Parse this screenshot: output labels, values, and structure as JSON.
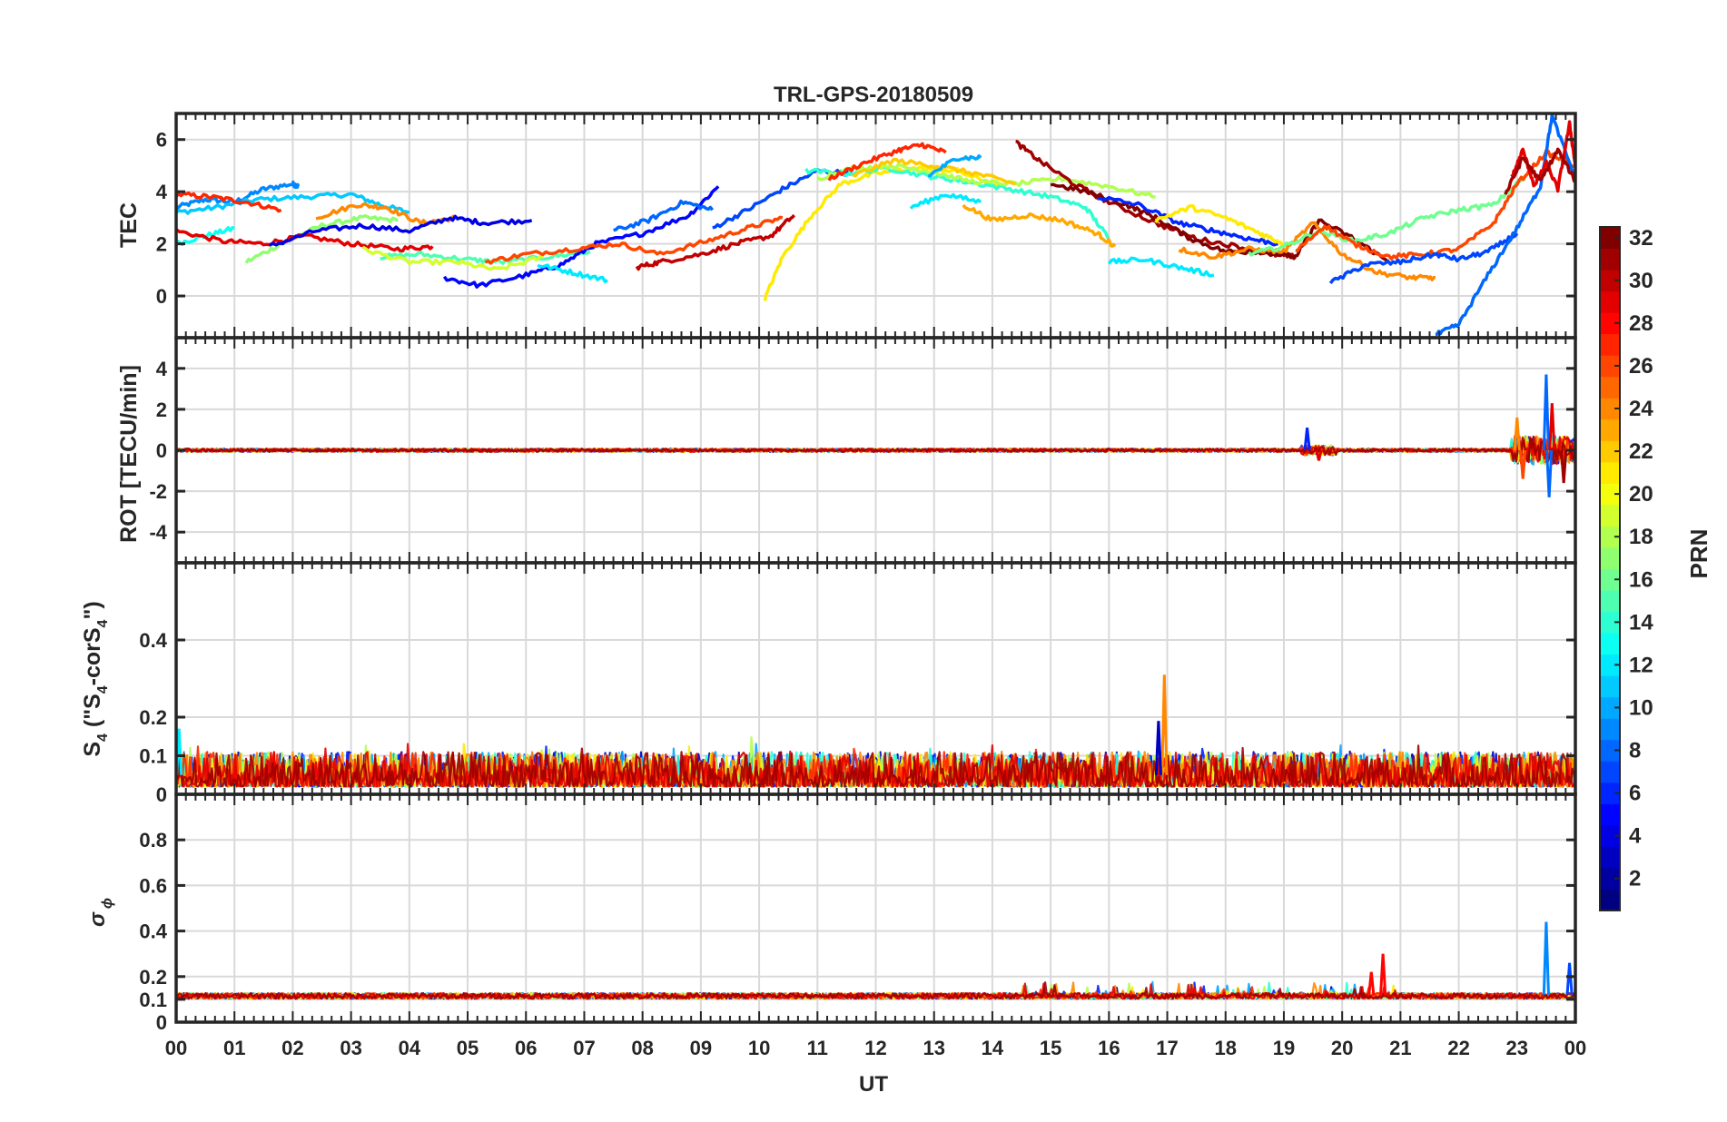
{
  "chart_data": {
    "type": "line",
    "title": "TRL-GPS-20180509",
    "xlabel": "UT",
    "x_ticks": [
      "00",
      "01",
      "02",
      "03",
      "04",
      "05",
      "06",
      "07",
      "08",
      "09",
      "10",
      "11",
      "12",
      "13",
      "14",
      "15",
      "16",
      "17",
      "18",
      "19",
      "20",
      "21",
      "22",
      "23",
      "00"
    ],
    "xlim": [
      0,
      24
    ],
    "grid": true,
    "panels": [
      {
        "ylabel": "TEC",
        "ylim": [
          -1.6,
          7
        ],
        "yticks": [
          "0",
          "2",
          "4",
          "6"
        ],
        "ytick_values": [
          0,
          2,
          4,
          6
        ],
        "series": [
          {
            "prn": 9,
            "x": [
              0,
              0.5,
              1,
              1.5,
              2,
              2.1
            ],
            "y": [
              3.4,
              3.7,
              3.6,
              4.1,
              4.3,
              4.2
            ]
          },
          {
            "prn": 11,
            "x": [
              0,
              0.7,
              1.4,
              2.2,
              3,
              3.5,
              4
            ],
            "y": [
              3.2,
              3.4,
              3.7,
              3.8,
              3.9,
              3.5,
              3.2
            ]
          },
          {
            "prn": 13,
            "x": [
              0,
              0.5,
              1
            ],
            "y": [
              2.0,
              2.3,
              2.6
            ]
          },
          {
            "prn": 17,
            "x": [
              1.2,
              1.8,
              2.5,
              3.2,
              3.8
            ],
            "y": [
              1.3,
              2.0,
              2.7,
              3.0,
              2.9
            ]
          },
          {
            "prn": 27,
            "x": [
              0,
              0.6,
              1.2,
              1.8
            ],
            "y": [
              3.9,
              3.8,
              3.6,
              3.3
            ]
          },
          {
            "prn": 29,
            "x": [
              0,
              0.8,
              1.5,
              2.2,
              3,
              3.8,
              4.4
            ],
            "y": [
              2.5,
              2.1,
              2.0,
              2.3,
              2.0,
              1.8,
              1.9
            ]
          },
          {
            "prn": 24,
            "x": [
              2.4,
              3.1,
              3.6,
              4.2,
              4.8
            ],
            "y": [
              3.0,
              3.5,
              3.4,
              2.8,
              3.0
            ]
          },
          {
            "prn": 4,
            "x": [
              1.6,
              2.4,
              3.2,
              4,
              4.7,
              5.3,
              6.1
            ],
            "y": [
              1.9,
              2.5,
              2.7,
              2.5,
              3.0,
              2.8,
              2.9
            ]
          },
          {
            "prn": 15,
            "x": [
              3.5,
              4.2,
              5,
              5.6,
              6.4,
              7.1
            ],
            "y": [
              1.5,
              1.6,
              1.4,
              1.3,
              1.5,
              1.7
            ]
          },
          {
            "prn": 19,
            "x": [
              3.2,
              4,
              4.8,
              5.5,
              6.3
            ],
            "y": [
              1.8,
              1.3,
              1.3,
              1.0,
              1.5
            ]
          },
          {
            "prn": 5,
            "x": [
              4.6,
              5.2,
              6,
              6.6,
              7.2,
              8,
              8.8,
              9.3
            ],
            "y": [
              0.7,
              0.4,
              0.8,
              1.2,
              2.0,
              2.4,
              3.1,
              4.2
            ]
          },
          {
            "prn": 12,
            "x": [
              6.2,
              6.8,
              7.4
            ],
            "y": [
              1.2,
              0.9,
              0.6
            ]
          },
          {
            "prn": 26,
            "x": [
              5.3,
              6,
              6.8,
              7.6,
              8.3,
              9.1,
              9.8,
              10.4
            ],
            "y": [
              1.3,
              1.6,
              1.8,
              2.0,
              1.6,
              2.1,
              2.6,
              3.0
            ]
          },
          {
            "prn": 30,
            "x": [
              7.9,
              8.3,
              9,
              9.6,
              10.2,
              10.6
            ],
            "y": [
              1.1,
              1.3,
              1.6,
              2.0,
              2.3,
              3.1
            ]
          },
          {
            "prn": 8,
            "x": [
              7.5,
              8.1,
              8.7,
              9.2
            ],
            "y": [
              2.5,
              2.9,
              3.6,
              3.3
            ]
          },
          {
            "prn": 7,
            "x": [
              9.2,
              9.8,
              10.4,
              11,
              11.6
            ],
            "y": [
              2.6,
              3.3,
              4.1,
              4.8,
              4.7
            ]
          },
          {
            "prn": 21,
            "x": [
              10.1,
              10.4,
              10.9,
              11.4,
              12,
              12.7,
              13.4,
              14.1
            ],
            "y": [
              -0.1,
              1.5,
              3.1,
              4.3,
              4.7,
              4.9,
              4.8,
              4.2
            ]
          },
          {
            "prn": 14,
            "x": [
              10.8,
              11.5,
              12.2,
              12.9,
              13.5,
              14.3,
              15,
              15.6,
              16
            ],
            "y": [
              4.8,
              4.7,
              4.9,
              4.6,
              4.4,
              4.1,
              3.8,
              3.4,
              2.2
            ]
          },
          {
            "prn": 18,
            "x": [
              11,
              11.6,
              12.3,
              12.9,
              13.6,
              14.4,
              15.2,
              16,
              16.8
            ],
            "y": [
              4.5,
              4.9,
              5.0,
              4.8,
              4.4,
              4.3,
              4.5,
              4.2,
              3.8
            ]
          },
          {
            "prn": 27,
            "x": [
              11.2,
              11.8,
              12.4,
              12.8,
              13.2
            ],
            "y": [
              4.5,
              5.1,
              5.6,
              5.8,
              5.5
            ]
          },
          {
            "prn": 22,
            "x": [
              11.6,
              12.3,
              13,
              13.7,
              14.4
            ],
            "y": [
              4.6,
              5.2,
              5.0,
              4.7,
              4.3
            ]
          },
          {
            "prn": 10,
            "x": [
              12.9,
              13.4,
              13.8
            ],
            "y": [
              4.6,
              5.3,
              5.3
            ]
          },
          {
            "prn": 12,
            "x": [
              12.6,
              13.2,
              13.8
            ],
            "y": [
              3.4,
              3.9,
              3.6
            ]
          },
          {
            "prn": 23,
            "x": [
              13.5,
              14,
              14.6,
              15.2,
              15.8,
              16.1
            ],
            "y": [
              3.5,
              2.9,
              3.1,
              2.9,
              2.4,
              1.9
            ]
          },
          {
            "prn": 31,
            "x": [
              14.4,
              14.8,
              15.4,
              16,
              16.8,
              17.5,
              18.2,
              18.8,
              19.2
            ],
            "y": [
              5.9,
              5.2,
              4.3,
              3.6,
              2.8,
              2.2,
              1.9,
              1.6,
              1.5
            ]
          },
          {
            "prn": 32,
            "x": [
              15,
              15.6,
              16.3,
              16.8,
              17.4,
              18,
              18.6,
              19.2,
              19.6,
              20.2,
              20.8
            ],
            "y": [
              4.3,
              4.0,
              3.5,
              3.0,
              2.2,
              1.7,
              1.7,
              1.5,
              2.9,
              2.2,
              1.3
            ]
          },
          {
            "prn": 6,
            "x": [
              15.8,
              16.5,
              17.2,
              17.8,
              18.4,
              18.9
            ],
            "y": [
              3.8,
              3.5,
              2.8,
              2.5,
              2.2,
              2.0
            ]
          },
          {
            "prn": 12,
            "x": [
              16,
              16.6,
              17.2,
              17.8
            ],
            "y": [
              1.3,
              1.4,
              1.1,
              0.8
            ]
          },
          {
            "prn": 21,
            "x": [
              16.8,
              17.4,
              18,
              18.6,
              19
            ],
            "y": [
              2.9,
              3.4,
              3.0,
              2.4,
              2.0
            ]
          },
          {
            "prn": 24,
            "x": [
              17.2,
              17.8,
              18.4,
              19,
              19.5,
              20,
              20.6,
              21.2,
              21.6
            ],
            "y": [
              1.8,
              1.5,
              1.8,
              1.7,
              2.8,
              1.6,
              0.9,
              0.7,
              0.7
            ]
          },
          {
            "prn": 16,
            "x": [
              18.4,
              19,
              19.6,
              20.2,
              20.8,
              21.4,
              22,
              22.6,
              23.2
            ],
            "y": [
              1.6,
              1.9,
              2.5,
              2.1,
              2.4,
              3.0,
              3.3,
              3.5,
              4.7
            ]
          },
          {
            "prn": 26,
            "x": [
              19.2,
              19.7,
              20.2,
              20.8,
              21.4,
              22,
              22.6,
              23,
              23.5,
              24
            ],
            "y": [
              1.7,
              2.7,
              2.0,
              1.5,
              1.6,
              1.8,
              2.8,
              4.3,
              5.5,
              5.0
            ]
          },
          {
            "prn": 7,
            "x": [
              19.8,
              20.4,
              21,
              21.6,
              22,
              22.5,
              23
            ],
            "y": [
              0.5,
              1.2,
              1.3,
              1.6,
              1.4,
              1.7,
              2.4
            ]
          },
          {
            "prn": 8,
            "x": [
              21.6,
              22,
              22.5,
              23,
              23.4,
              23.6,
              24
            ],
            "y": [
              -1.5,
              -1.1,
              0.8,
              2.6,
              4.2,
              6.9,
              4.5
            ]
          },
          {
            "prn": 29,
            "x": [
              22.9,
              23.1,
              23.3,
              23.5,
              23.7,
              23.9,
              24
            ],
            "y": [
              4.5,
              5.6,
              4.2,
              5.1,
              4.1,
              6.6,
              5.0
            ]
          },
          {
            "prn": 31,
            "x": [
              22.8,
              23.1,
              23.4,
              23.7,
              24
            ],
            "y": [
              3.9,
              5.3,
              4.4,
              5.6,
              4.4
            ]
          }
        ]
      },
      {
        "ylabel": "ROT [TECU/min]",
        "ylim": [
          -5.5,
          5.5
        ],
        "yticks": [
          "-4",
          "-2",
          "0",
          "2",
          "4"
        ],
        "ytick_values": [
          -4,
          -2,
          0,
          2,
          4
        ],
        "series_summary": "Rate of TEC for all PRNs, near 0 for most of the day; disturbances near 19.4 UT and 23.0-24.0 UT",
        "spikes": [
          {
            "prn": 6,
            "x": 19.4,
            "y": 1.1
          },
          {
            "prn": 29,
            "x": 19.6,
            "y": -0.5
          },
          {
            "prn": 24,
            "x": 23.0,
            "y": 1.6
          },
          {
            "prn": 26,
            "x": 23.1,
            "y": -1.4
          },
          {
            "prn": 8,
            "x": 23.5,
            "y": 3.7
          },
          {
            "prn": 8,
            "x": 23.55,
            "y": -2.3
          },
          {
            "prn": 29,
            "x": 23.6,
            "y": 2.3
          },
          {
            "prn": 31,
            "x": 23.8,
            "y": -1.6
          }
        ]
      },
      {
        "ylabel": "S4 (\"S4-corS4\")",
        "ylabel_parts": [
          "S",
          "4",
          " (\"S",
          "4",
          "-corS",
          "4",
          "\")"
        ],
        "ylim": [
          0,
          0.6
        ],
        "yticks": [
          "0",
          "0.1",
          "0.2",
          "0.4"
        ],
        "ytick_values": [
          0,
          0.1,
          0.2,
          0.4
        ],
        "series_summary": "Amplitude scintillation index for all PRNs, mostly 0.02-0.12",
        "spikes": [
          {
            "prn": 24,
            "x": 16.95,
            "y": 0.31
          },
          {
            "prn": 3,
            "x": 16.85,
            "y": 0.19
          },
          {
            "prn": 12,
            "x": 0.05,
            "y": 0.17
          }
        ]
      },
      {
        "ylabel": "σ ϕ",
        "ylabel_parts": [
          "σ",
          "ϕ"
        ],
        "ylim": [
          0,
          1
        ],
        "yticks": [
          "0",
          "0.1",
          "0.2",
          "0.4",
          "0.6",
          "0.8"
        ],
        "ytick_values": [
          0,
          0.1,
          0.2,
          0.4,
          0.6,
          0.8
        ],
        "series_summary": "Phase scintillation index for all PRNs, baseline near 0.12",
        "spikes": [
          {
            "prn": 28,
            "x": 20.5,
            "y": 0.22
          },
          {
            "prn": 28,
            "x": 20.7,
            "y": 0.3
          },
          {
            "prn": 9,
            "x": 23.5,
            "y": 0.44
          },
          {
            "prn": 7,
            "x": 23.9,
            "y": 0.26
          }
        ]
      }
    ],
    "colorbar": {
      "label": "PRN",
      "range": [
        1,
        32
      ],
      "ticks": [
        "2",
        "4",
        "6",
        "8",
        "10",
        "12",
        "14",
        "16",
        "18",
        "20",
        "22",
        "24",
        "26",
        "28",
        "30",
        "32"
      ],
      "tick_values": [
        2,
        4,
        6,
        8,
        10,
        12,
        14,
        16,
        18,
        20,
        22,
        24,
        26,
        28,
        30,
        32
      ],
      "colormap": "jet"
    },
    "legend": "colorbar-right"
  }
}
